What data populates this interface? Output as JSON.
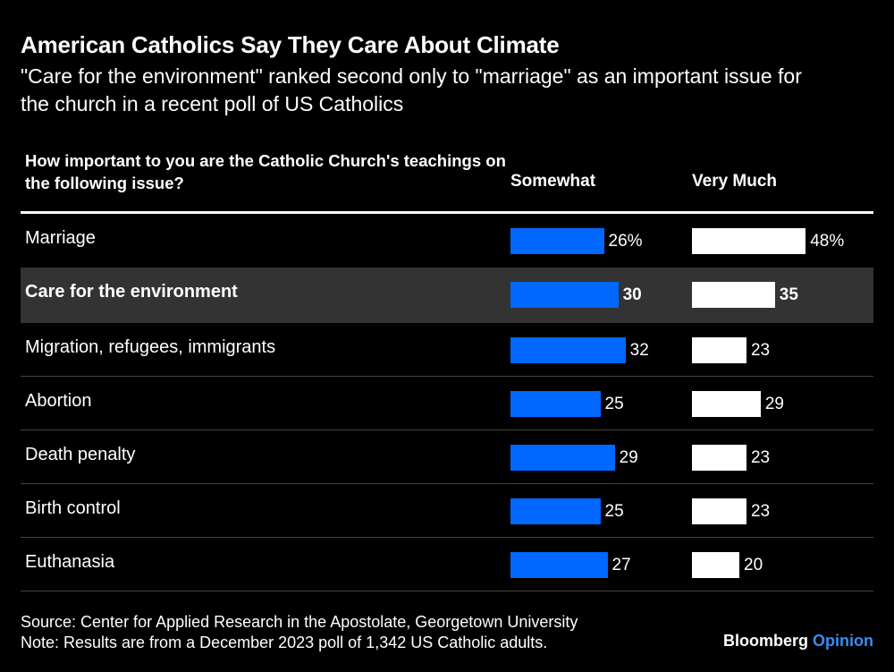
{
  "header": {
    "title": "American Catholics Say They Care About Climate",
    "subtitle": "\"Care for the environment\" ranked second only to \"marriage\" as an important issue for the church in a recent poll of US Catholics"
  },
  "table": {
    "question": "How important to you are the Catholic Church's teachings on the following issue?",
    "columns": [
      "Somewhat",
      "Very Much"
    ]
  },
  "footer": {
    "source": "Source: Center for Applied Research in the Apostolate, Georgetown University",
    "note": "Note: Results are from a December 2023 poll of 1,342 US Catholic adults.",
    "brand_main": "Bloomberg",
    "brand_accent": "Opinion"
  },
  "colors": {
    "somewhat_bar": "#0068ff",
    "very_much_bar": "#ffffff",
    "highlight_row": "#333333",
    "brand_accent": "#3b8cf5"
  },
  "chart_data": {
    "type": "bar",
    "orientation": "horizontal",
    "title": "American Catholics Say They Care About Climate",
    "subtitle": "\"Care for the environment\" ranked second only to \"marriage\" as an important issue for the church in a recent poll of US Catholics",
    "unit": "%",
    "categories": [
      "Marriage",
      "Care for the environment",
      "Migration, refugees, immigrants",
      "Abortion",
      "Death penalty",
      "Birth control",
      "Euthanasia"
    ],
    "highlighted_category": "Care for the environment",
    "series": [
      {
        "name": "Somewhat",
        "values": [
          26,
          30,
          32,
          25,
          29,
          25,
          27
        ],
        "labels": [
          "26%",
          "30",
          "32",
          "25",
          "29",
          "25",
          "27"
        ]
      },
      {
        "name": "Very Much",
        "values": [
          48,
          35,
          23,
          29,
          23,
          23,
          20
        ],
        "labels": [
          "48%",
          "35",
          "23",
          "29",
          "23",
          "23",
          "20"
        ]
      }
    ]
  }
}
